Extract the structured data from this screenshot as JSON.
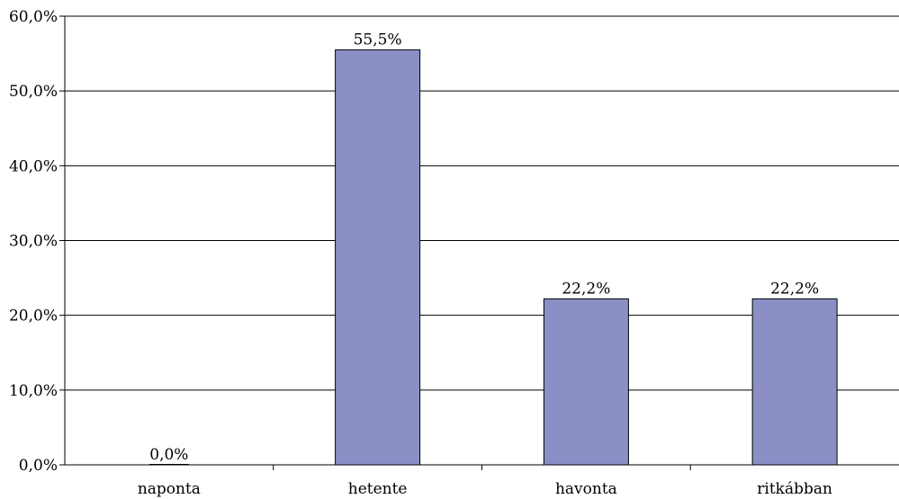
{
  "chart_data": {
    "type": "bar",
    "title": "",
    "xlabel": "",
    "ylabel": "",
    "categories": [
      "naponta",
      "hetente",
      "havonta",
      "ritkábban"
    ],
    "values": [
      0.0,
      55.5,
      22.2,
      22.2
    ],
    "data_labels": [
      "0,0%",
      "55,5%",
      "22,2%",
      "22,2%"
    ],
    "ylim": [
      0,
      60
    ],
    "yticks": [
      0,
      10,
      20,
      30,
      40,
      50,
      60
    ],
    "ytick_labels": [
      "0,0%",
      "10,0%",
      "20,0%",
      "30,0%",
      "40,0%",
      "50,0%",
      "60,0%"
    ],
    "grid": true,
    "legend": "none",
    "colors": {
      "bar": "#8b8fc6",
      "bar_edge": "#000000",
      "grid": "#000000",
      "axis": "#000000"
    }
  }
}
